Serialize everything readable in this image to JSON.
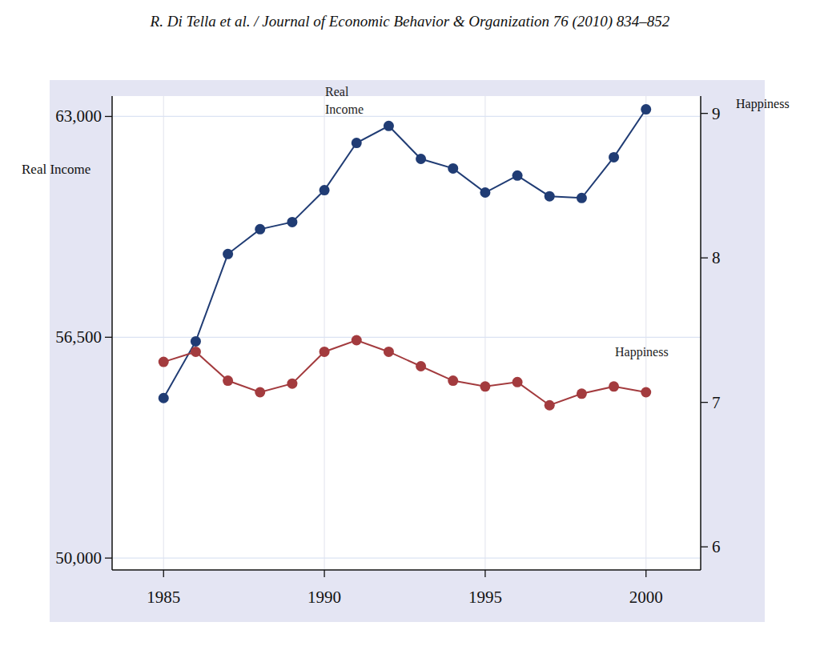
{
  "chart_data": {
    "type": "line",
    "title": "R. Di Tella et al. / Journal of Economic Behavior & Organization 76 (2010) 834–852",
    "y_label": "Real Income",
    "y2_label": "Happiness",
    "x": [
      1985,
      1986,
      1987,
      1988,
      1989,
      1990,
      1991,
      1992,
      1993,
      1994,
      1995,
      1996,
      1997,
      1998,
      1999,
      2000
    ],
    "series": [
      {
        "name": "Real Income",
        "color": "#203c74",
        "marker": "circle",
        "line_style": "solid",
        "values": [
          54710,
          56380,
          58950,
          59680,
          59890,
          60830,
          62220,
          62720,
          61750,
          61470,
          60760,
          61260,
          60650,
          60600,
          61800,
          63210
        ]
      },
      {
        "name": "Happiness",
        "color": "#a33b3e",
        "marker": "circle",
        "line_style": "solid",
        "axis": "y2",
        "values": [
          7.28,
          7.35,
          7.15,
          7.07,
          7.13,
          7.35,
          7.43,
          7.35,
          7.25,
          7.15,
          7.11,
          7.14,
          6.98,
          7.06,
          7.11,
          7.07
        ]
      }
    ],
    "xlim": [
      1983.4,
      2001.7
    ],
    "xticks": [
      1985,
      1990,
      1995,
      2000
    ],
    "ylim": [
      49650,
      63600
    ],
    "yticks": [
      {
        "value": 50000,
        "label": "50,000"
      },
      {
        "value": 56500,
        "label": "56,500"
      },
      {
        "value": 63000,
        "label": "63,000"
      }
    ],
    "y2lim": [
      5.84,
      9.12
    ],
    "y2ticks": [
      6,
      7,
      8,
      9
    ],
    "grid": true
  }
}
